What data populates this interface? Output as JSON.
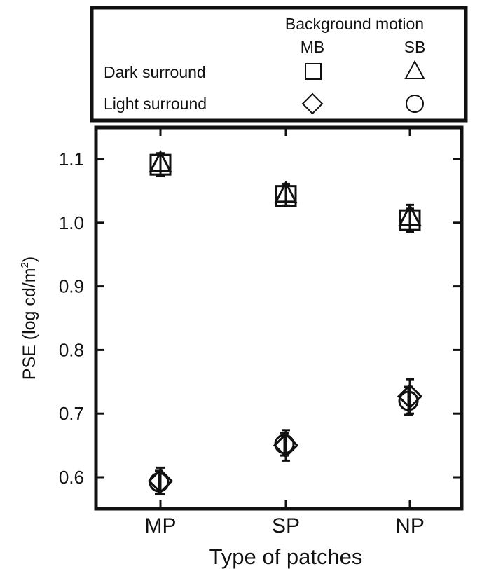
{
  "legend": {
    "header": "Background motion",
    "col1": "MB",
    "col2": "SB",
    "row1": "Dark surround",
    "row2": "Light surround"
  },
  "chart_data": {
    "type": "scatter",
    "title": "",
    "xlabel": "Type of patches",
    "ylabel": "PSE (log cd/m",
    "ylabel_sup": "2",
    "ylabel_end": ")",
    "categories": [
      "MP",
      "SP",
      "NP"
    ],
    "ylim": [
      0.57,
      1.15
    ],
    "yticks": [
      0.6,
      0.7,
      0.8,
      0.9,
      1.0,
      1.1
    ],
    "ytick_labels": [
      "0.6",
      "0.7",
      "0.8",
      "0.9",
      "1.0",
      "1.1"
    ],
    "grid": false,
    "legend_position": "top",
    "series": [
      {
        "marker": "square",
        "values": [
          1.091,
          1.042,
          1.004
        ],
        "errors": [
          0.018,
          0.016,
          0.018
        ]
      },
      {
        "marker": "triangle",
        "values": [
          1.092,
          1.044,
          1.008
        ],
        "errors": [
          0.017,
          0.017,
          0.02
        ]
      },
      {
        "marker": "diamond",
        "values": [
          0.594,
          0.65,
          0.727
        ],
        "errors": [
          0.021,
          0.024,
          0.027
        ]
      },
      {
        "marker": "circle",
        "values": [
          0.592,
          0.652,
          0.72
        ],
        "errors": [
          0.018,
          0.018,
          0.022
        ]
      }
    ]
  }
}
